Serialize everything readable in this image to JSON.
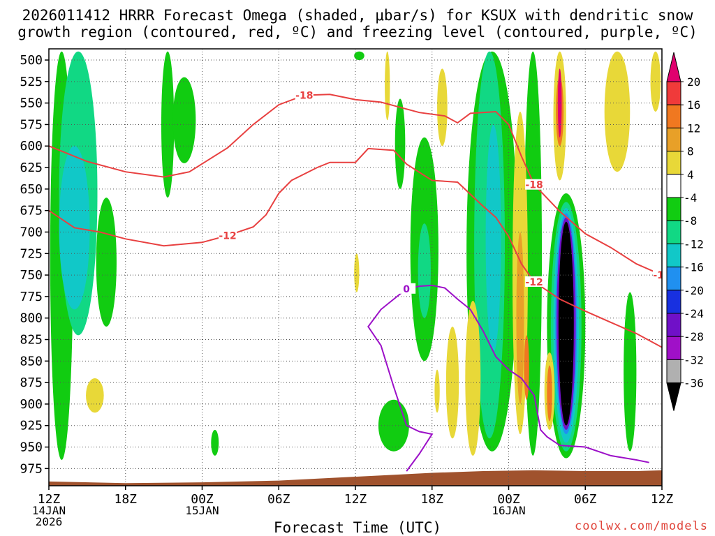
{
  "chart_data": {
    "type": "heatmap",
    "title_line1": "2026011412 HRRR Forecast Omega (shaded, μbar/s) for KSUX with dendritic snow",
    "title_line2": "growth region (contoured, red, ºC) and freezing level (contoured, purple, ºC)",
    "xlabel": "Forecast Time (UTC)",
    "credit": "coolwx.com/models",
    "x_range_hours": [
      0,
      48
    ],
    "y_range_mb": [
      487,
      995
    ],
    "y_ticks": [
      "500",
      "525",
      "550",
      "575",
      "600",
      "625",
      "650",
      "675",
      "700",
      "725",
      "750",
      "775",
      "800",
      "825",
      "850",
      "875",
      "900",
      "925",
      "950",
      "975"
    ],
    "x_ticks": [
      {
        "label": "12Z",
        "hour": 0,
        "sub1": "14JAN",
        "sub2": "2026"
      },
      {
        "label": "18Z",
        "hour": 6,
        "sub1": "",
        "sub2": ""
      },
      {
        "label": "00Z",
        "hour": 12,
        "sub1": "15JAN",
        "sub2": ""
      },
      {
        "label": "06Z",
        "hour": 18,
        "sub1": "",
        "sub2": ""
      },
      {
        "label": "12Z",
        "hour": 24,
        "sub1": "",
        "sub2": ""
      },
      {
        "label": "18Z",
        "hour": 30,
        "sub1": "",
        "sub2": ""
      },
      {
        "label": "00Z",
        "hour": 36,
        "sub1": "16JAN",
        "sub2": ""
      },
      {
        "label": "06Z",
        "hour": 42,
        "sub1": "",
        "sub2": ""
      },
      {
        "label": "12Z",
        "hour": 48,
        "sub1": "",
        "sub2": ""
      }
    ],
    "colorbar": {
      "labels": [
        "20",
        "16",
        "12",
        "8",
        "4",
        "-4",
        "-8",
        "-12",
        "-16",
        "-20",
        "-24",
        "-28",
        "-32",
        "-36"
      ],
      "colors": [
        "#e0006e",
        "#f03a3a",
        "#f07820",
        "#e8a028",
        "#e8d838",
        "#ffffff",
        "#11cc11",
        "#11d884",
        "#11c8c8",
        "#2090f0",
        "#1830e0",
        "#7010c8",
        "#a010c8",
        "#b0b0b0",
        "#000000"
      ],
      "bands": [
        ">20",
        "16 to 20",
        "12 to 16",
        "8 to 12",
        "4 to 8",
        "-4 to 4",
        "-8 to -4",
        "-12 to -8",
        "-16 to -12",
        "-20 to -16",
        "-24 to -20",
        "-28 to -24",
        "-32 to -28",
        "-36 to -32",
        "< -36"
      ]
    },
    "contours": [
      {
        "name": "-18 C isotherm",
        "color": "#e84040",
        "label": "-18",
        "points": [
          [
            0,
            600
          ],
          [
            3,
            618
          ],
          [
            6,
            630
          ],
          [
            9,
            636
          ],
          [
            11,
            630
          ],
          [
            14,
            602
          ],
          [
            16,
            575
          ],
          [
            18,
            552
          ],
          [
            20,
            541
          ],
          [
            22,
            540
          ],
          [
            24,
            546
          ],
          [
            26,
            549
          ],
          [
            27,
            553
          ],
          [
            29,
            561
          ],
          [
            31,
            565
          ],
          [
            32,
            573
          ],
          [
            33,
            562
          ],
          [
            35,
            560
          ],
          [
            36,
            575
          ],
          [
            37,
            612
          ],
          [
            38,
            645
          ],
          [
            40,
            676
          ],
          [
            42,
            702
          ],
          [
            44,
            718
          ],
          [
            46,
            737
          ],
          [
            48,
            750
          ]
        ]
      },
      {
        "name": "-12 C isotherm",
        "color": "#e84040",
        "label": "-12",
        "points": [
          [
            0,
            675
          ],
          [
            2,
            695
          ],
          [
            4,
            700
          ],
          [
            6,
            708
          ],
          [
            9,
            716
          ],
          [
            12,
            712
          ],
          [
            14,
            704
          ],
          [
            16,
            694
          ],
          [
            17,
            680
          ],
          [
            18,
            655
          ],
          [
            19,
            640
          ],
          [
            21,
            625
          ],
          [
            22,
            619
          ],
          [
            24,
            619
          ],
          [
            25,
            603
          ],
          [
            27,
            605
          ],
          [
            28,
            621
          ],
          [
            30,
            640
          ],
          [
            32,
            642
          ],
          [
            34,
            670
          ],
          [
            35,
            683
          ],
          [
            36,
            705
          ],
          [
            37,
            737
          ],
          [
            38,
            758
          ],
          [
            40,
            778
          ],
          [
            42,
            792
          ],
          [
            44,
            805
          ],
          [
            46,
            818
          ],
          [
            48,
            834
          ]
        ]
      },
      {
        "name": "0 C freezing level",
        "color": "#9c10c8",
        "label": "0",
        "points": [
          [
            28,
            978
          ],
          [
            29,
            958
          ],
          [
            30,
            935
          ],
          [
            29,
            932
          ],
          [
            28,
            925
          ],
          [
            27,
            880
          ],
          [
            26,
            832
          ],
          [
            25,
            810
          ],
          [
            26,
            790
          ],
          [
            27,
            778
          ],
          [
            28,
            766
          ],
          [
            29,
            763
          ],
          [
            30,
            762
          ],
          [
            31,
            765
          ],
          [
            32,
            778
          ],
          [
            33,
            790
          ],
          [
            34,
            815
          ],
          [
            35,
            845
          ],
          [
            36,
            860
          ],
          [
            37,
            870
          ],
          [
            38,
            890
          ],
          [
            38.5,
            930
          ],
          [
            39,
            938
          ],
          [
            40,
            948
          ],
          [
            42,
            950
          ],
          [
            44,
            960
          ],
          [
            46,
            965
          ],
          [
            47,
            968
          ]
        ]
      }
    ],
    "omega_regions": [
      {
        "band": "-8 to -4",
        "center_hour": 1.0,
        "top_mb": 490,
        "bottom_mb": 965,
        "hw_hours": 0.9
      },
      {
        "band": "-12 to -8",
        "center_hour": 2.3,
        "top_mb": 490,
        "bottom_mb": 820,
        "hw_hours": 1.5
      },
      {
        "band": "-16 to -12",
        "center_hour": 2.0,
        "top_mb": 600,
        "bottom_mb": 790,
        "hw_hours": 1.2
      },
      {
        "band": "-8 to -4",
        "center_hour": 4.5,
        "top_mb": 660,
        "bottom_mb": 810,
        "hw_hours": 0.8
      },
      {
        "band": "-8 to -4",
        "center_hour": 9.3,
        "top_mb": 490,
        "bottom_mb": 660,
        "hw_hours": 0.5
      },
      {
        "band": "-8 to -4",
        "center_hour": 10.6,
        "top_mb": 520,
        "bottom_mb": 620,
        "hw_hours": 0.9
      },
      {
        "band": "-8 to -4",
        "center_hour": 13.0,
        "top_mb": 930,
        "bottom_mb": 960,
        "hw_hours": 0.3
      },
      {
        "band": "-8 to -4",
        "center_hour": 24.3,
        "top_mb": 490,
        "bottom_mb": 500,
        "hw_hours": 0.4
      },
      {
        "band": "-8 to -4",
        "center_hour": 27.5,
        "top_mb": 545,
        "bottom_mb": 650,
        "hw_hours": 0.4
      },
      {
        "band": "-8 to -4",
        "center_hour": 29.4,
        "top_mb": 590,
        "bottom_mb": 850,
        "hw_hours": 1.1
      },
      {
        "band": "-12 to -8",
        "center_hour": 29.4,
        "top_mb": 690,
        "bottom_mb": 800,
        "hw_hours": 0.5
      },
      {
        "band": "-8 to -4",
        "center_hour": 27.0,
        "top_mb": 895,
        "bottom_mb": 955,
        "hw_hours": 1.2
      },
      {
        "band": "-8 to -4",
        "center_hour": 34.7,
        "top_mb": 490,
        "bottom_mb": 955,
        "hw_hours": 2.0
      },
      {
        "band": "-12 to -8",
        "center_hour": 34.5,
        "top_mb": 490,
        "bottom_mb": 940,
        "hw_hours": 1.2
      },
      {
        "band": "-16 to -12",
        "center_hour": 34.8,
        "top_mb": 575,
        "bottom_mb": 840,
        "hw_hours": 0.6
      },
      {
        "band": "-8 to -4",
        "center_hour": 37.9,
        "top_mb": 490,
        "bottom_mb": 960,
        "hw_hours": 0.7
      },
      {
        "band": "-8 to -4",
        "center_hour": 40.5,
        "top_mb": 655,
        "bottom_mb": 963,
        "hw_hours": 1.5
      },
      {
        "band": "-12 to -8",
        "center_hour": 40.5,
        "top_mb": 665,
        "bottom_mb": 955,
        "hw_hours": 1.2
      },
      {
        "band": "-16 to -12",
        "center_hour": 40.5,
        "top_mb": 672,
        "bottom_mb": 945,
        "hw_hours": 1.0
      },
      {
        "band": "-20 to -16",
        "center_hour": 40.5,
        "top_mb": 678,
        "bottom_mb": 935,
        "hw_hours": 0.85
      },
      {
        "band": "-28 to -24",
        "center_hour": 40.5,
        "top_mb": 683,
        "bottom_mb": 930,
        "hw_hours": 0.75
      },
      {
        "band": "< -36",
        "center_hour": 40.5,
        "top_mb": 688,
        "bottom_mb": 925,
        "hw_hours": 0.6
      },
      {
        "band": "-8 to -4",
        "center_hour": 45.5,
        "top_mb": 770,
        "bottom_mb": 955,
        "hw_hours": 0.5
      },
      {
        "band": "4 to 8",
        "center_hour": 36.9,
        "top_mb": 560,
        "bottom_mb": 935,
        "hw_hours": 0.6
      },
      {
        "band": "8 to 12",
        "center_hour": 36.9,
        "top_mb": 700,
        "bottom_mb": 900,
        "hw_hours": 0.3
      },
      {
        "band": "12 to 16",
        "center_hour": 37.4,
        "top_mb": 820,
        "bottom_mb": 895,
        "hw_hours": 0.2
      },
      {
        "band": "4 to 8",
        "center_hour": 31.6,
        "top_mb": 810,
        "bottom_mb": 940,
        "hw_hours": 0.5
      },
      {
        "band": "4 to 8",
        "center_hour": 33.2,
        "top_mb": 780,
        "bottom_mb": 960,
        "hw_hours": 0.6
      },
      {
        "band": "4 to 8",
        "center_hour": 39.2,
        "top_mb": 840,
        "bottom_mb": 930,
        "hw_hours": 0.4
      },
      {
        "band": "12 to 16",
        "center_hour": 39.2,
        "top_mb": 855,
        "bottom_mb": 920,
        "hw_hours": 0.2
      },
      {
        "band": "4 to 8",
        "center_hour": 40.0,
        "top_mb": 490,
        "bottom_mb": 640,
        "hw_hours": 0.5
      },
      {
        "band": "12 to 16",
        "center_hour": 40.0,
        "top_mb": 520,
        "bottom_mb": 600,
        "hw_hours": 0.3
      },
      {
        "band": ">20",
        "center_hour": 40.0,
        "top_mb": 510,
        "bottom_mb": 590,
        "hw_hours": 0.15
      },
      {
        "band": "4 to 8",
        "center_hour": 44.5,
        "top_mb": 490,
        "bottom_mb": 630,
        "hw_hours": 1.0
      },
      {
        "band": "4 to 8",
        "center_hour": 47.5,
        "top_mb": 490,
        "bottom_mb": 560,
        "hw_hours": 0.4
      },
      {
        "band": "4 to 8",
        "center_hour": 30.4,
        "top_mb": 860,
        "bottom_mb": 910,
        "hw_hours": 0.2
      },
      {
        "band": "4 to 8",
        "center_hour": 26.5,
        "top_mb": 490,
        "bottom_mb": 570,
        "hw_hours": 0.2
      },
      {
        "band": "4 to 8",
        "center_hour": 30.8,
        "top_mb": 510,
        "bottom_mb": 600,
        "hw_hours": 0.4
      },
      {
        "band": "4 to 8",
        "center_hour": 24.1,
        "top_mb": 725,
        "bottom_mb": 770,
        "hw_hours": 0.2
      },
      {
        "band": "4 to 8",
        "center_hour": 3.6,
        "top_mb": 870,
        "bottom_mb": 910,
        "hw_hours": 0.7
      }
    ],
    "terrain": {
      "color": "#a0522d",
      "label": "surface / terrain",
      "points": [
        [
          0,
          990
        ],
        [
          6,
          992
        ],
        [
          12,
          991
        ],
        [
          18,
          989
        ],
        [
          22,
          986
        ],
        [
          26,
          983
        ],
        [
          30,
          980
        ],
        [
          34,
          978
        ],
        [
          38,
          977
        ],
        [
          42,
          978
        ],
        [
          46,
          978
        ],
        [
          48,
          977
        ]
      ]
    }
  }
}
